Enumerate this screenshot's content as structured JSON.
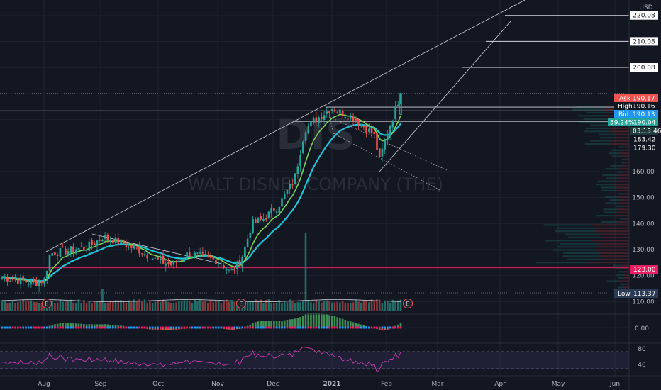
{
  "currency": "USD",
  "watermark": {
    "symbol": "DIS",
    "name": "WALT DISNEY COMPANY (THE)"
  },
  "colors": {
    "background": "#131722",
    "up": "#26a69a",
    "down": "#ef5350",
    "ema_fast": "#7cd35b",
    "ema_slow": "#22c3d6",
    "rsi": "#c63fb0",
    "support": "#e91e63",
    "ask": "#ef5350",
    "bid": "#2196f3",
    "current": "#26a69a",
    "low_tag": "#2a3b55"
  },
  "chart_data": {
    "type": "candlestick",
    "x_ticks": [
      "Aug",
      "Sep",
      "Oct",
      "Nov",
      "Dec",
      "2021",
      "Feb",
      "Mar",
      "Apr",
      "May",
      "Jun"
    ],
    "y_ticks": [
      110.0,
      120.0,
      130.0,
      140.0,
      150.0,
      160.0
    ],
    "ylim": [
      106,
      226
    ],
    "price_levels": [
      {
        "name": "target-220",
        "label": "220.08",
        "value": 220.08
      },
      {
        "name": "target-210",
        "label": "210.08",
        "value": 210.08
      },
      {
        "name": "target-200",
        "label": "200.08",
        "value": 200.08
      },
      {
        "name": "resistance-high",
        "value": 190.16
      },
      {
        "name": "resistance-mid",
        "value": 183.42
      },
      {
        "name": "support-123",
        "label": "123.00",
        "value": 123.0
      },
      {
        "name": "low-level",
        "value": 113.37
      }
    ],
    "tags": {
      "ask": {
        "label": "Ask",
        "value": "190.17"
      },
      "high": {
        "label": "High",
        "value": "190.16"
      },
      "bid": {
        "label": "Bid",
        "value": "190.13"
      },
      "current": {
        "pct": "59.24%",
        "value": "190.04",
        "countdown": "03:13:46"
      },
      "level_1": "183.42",
      "level_2": "179.30",
      "low": {
        "label": "Low",
        "value": "113.37"
      }
    },
    "ohlc_anchors": [
      {
        "t": 0,
        "c": 119.5
      },
      {
        "t": 3,
        "c": 118.2
      },
      {
        "t": 6,
        "c": 117.0
      },
      {
        "t": 8,
        "c": 118.5
      },
      {
        "t": 9,
        "c": 128.5
      },
      {
        "t": 12,
        "c": 129.5
      },
      {
        "t": 16,
        "c": 131.0
      },
      {
        "t": 19,
        "c": 134.8
      },
      {
        "t": 22,
        "c": 133.0
      },
      {
        "t": 26,
        "c": 129.5
      },
      {
        "t": 29,
        "c": 126.0
      },
      {
        "t": 32,
        "c": 124.0
      },
      {
        "t": 35,
        "c": 128.5
      },
      {
        "t": 38,
        "c": 127.0
      },
      {
        "t": 41,
        "c": 125.5
      },
      {
        "t": 43,
        "c": 121.0
      },
      {
        "t": 45,
        "c": 126.0
      },
      {
        "t": 47,
        "c": 140.0
      },
      {
        "t": 49,
        "c": 141.5
      },
      {
        "t": 52,
        "c": 147.0
      },
      {
        "t": 55,
        "c": 157.0
      },
      {
        "t": 57,
        "c": 176.5
      },
      {
        "t": 59,
        "c": 180.0
      },
      {
        "t": 62,
        "c": 184.5
      },
      {
        "t": 64,
        "c": 182.5
      },
      {
        "t": 66,
        "c": 181.0
      },
      {
        "t": 68,
        "c": 177.5
      },
      {
        "t": 70,
        "c": 174.0
      },
      {
        "t": 71,
        "c": 164.0
      },
      {
        "t": 72,
        "c": 172.0
      },
      {
        "t": 74,
        "c": 184.0
      },
      {
        "t": 75,
        "c": 190.04
      }
    ],
    "volume_spikes": [
      {
        "t": 19,
        "v": 1.0
      },
      {
        "t": 57,
        "v": 3.4
      }
    ],
    "oscillator": {
      "type": "histogram",
      "zero_label": "0.00"
    },
    "rsi": {
      "y_ticks": [
        80.0,
        40.0
      ],
      "ylim": [
        30,
        90
      ]
    }
  }
}
